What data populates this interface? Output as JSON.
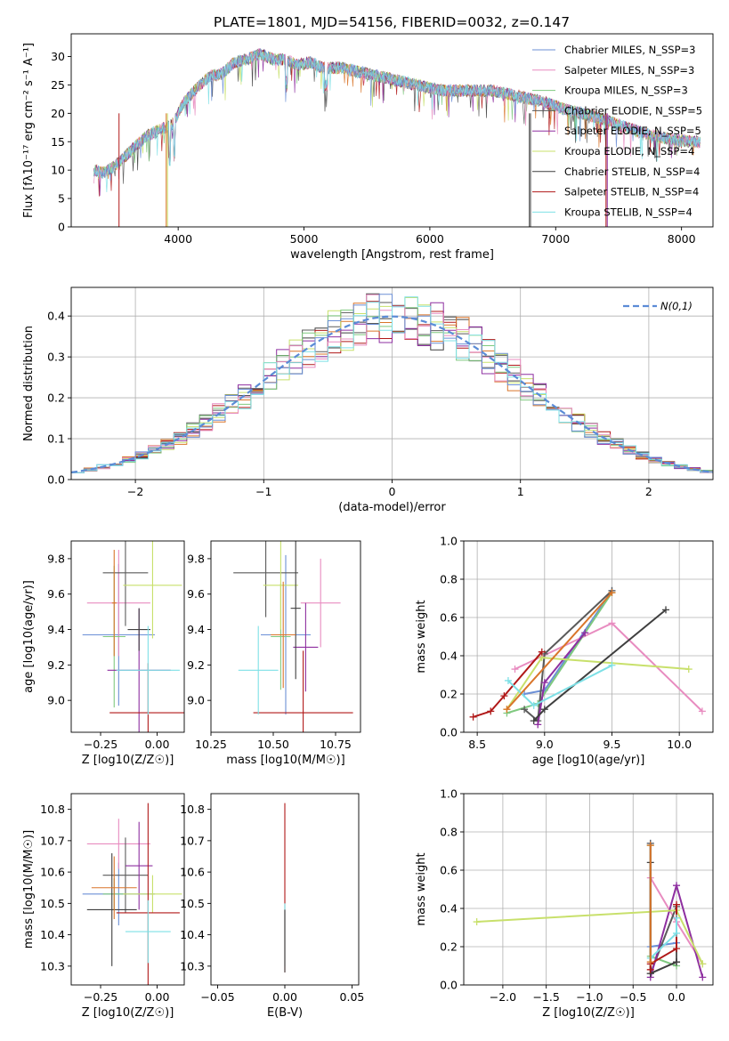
{
  "colors": [
    "#6b8fd6",
    "#e88cc0",
    "#7fc97f",
    "#5a5a5a",
    "#8e2fa0",
    "#c8e06b",
    "#3f3f3f",
    "#b01818",
    "#7ee0e6",
    "#d9752a"
  ],
  "panel_titles": {
    "spectrum": "PLATE=1801, MJD=54156, FIBERID=0032, z=0.147"
  },
  "chart_data": [
    {
      "id": "spectrum",
      "type": "line",
      "title": "PLATE=1801, MJD=54156, FIBERID=0032, z=0.147",
      "xlabel": "wavelength [Angstrom, rest frame]",
      "ylabel": "Flux [fλ10⁻¹⁷ erg cm⁻² s⁻¹ A⁻¹]",
      "xlim": [
        3150,
        8250
      ],
      "ylim": [
        0,
        34
      ],
      "xticks": [
        4000,
        5000,
        6000,
        7000,
        8000
      ],
      "yticks": [
        0,
        5,
        10,
        15,
        20,
        25,
        30
      ],
      "legend_position": "top-right",
      "legend": [
        "Chabrier MILES, N_SSP=3",
        "Salpeter MILES, N_SSP=3",
        "Kroupa MILES, N_SSP=3",
        "Chabrier ELODIE, N_SSP=5",
        "Salpeter ELODIE, N_SSP=5",
        "Kroupa ELODIE, N_SSP=4",
        "Chabrier STELIB, N_SSP=4",
        "Salpeter STELIB, N_SSP=4",
        "Kroupa STELIB, N_SSP=4"
      ],
      "envelope": [
        [
          3330,
          10
        ],
        [
          3400,
          9.5
        ],
        [
          3480,
          10.5
        ],
        [
          3560,
          12
        ],
        [
          3650,
          14
        ],
        [
          3750,
          16
        ],
        [
          3850,
          17
        ],
        [
          3950,
          18
        ],
        [
          4050,
          22
        ],
        [
          4150,
          24.5
        ],
        [
          4250,
          26.5
        ],
        [
          4350,
          27
        ],
        [
          4450,
          29
        ],
        [
          4550,
          29.5
        ],
        [
          4650,
          30.5
        ],
        [
          4750,
          29.5
        ],
        [
          4850,
          29.5
        ],
        [
          4950,
          28.5
        ],
        [
          5050,
          29
        ],
        [
          5150,
          28
        ],
        [
          5300,
          28
        ],
        [
          5500,
          27
        ],
        [
          5700,
          26
        ],
        [
          5900,
          25
        ],
        [
          6100,
          24
        ],
        [
          6300,
          24
        ],
        [
          6500,
          24
        ],
        [
          6700,
          23
        ],
        [
          6900,
          22
        ],
        [
          7100,
          20.5
        ],
        [
          7300,
          19.5
        ],
        [
          7500,
          18
        ],
        [
          7700,
          16.5
        ],
        [
          7900,
          15.5
        ],
        [
          8100,
          15
        ]
      ]
    },
    {
      "id": "residuals",
      "type": "line",
      "xlabel": "(data-model)/error",
      "ylabel": "Normed distribution",
      "xlim": [
        -2.5,
        2.5
      ],
      "ylim": [
        0,
        0.47
      ],
      "xticks": [
        -2,
        -1,
        0,
        1,
        2
      ],
      "yticks": [
        0.0,
        0.1,
        0.2,
        0.3,
        0.4
      ],
      "grid": true,
      "legend_position": "top-right",
      "legend": [
        "N(0,1)"
      ],
      "bin_width": 0.1
    },
    {
      "id": "age_vs_Z",
      "type": "scatter",
      "xlabel": "Z [log10(Z/Z☉)]",
      "ylabel": "age  [log10(age/yr)]",
      "xlim": [
        -0.38,
        0.12
      ],
      "ylim": [
        8.82,
        9.9
      ],
      "xticks": [
        -0.25,
        0.0
      ],
      "yticks": [
        9.0,
        9.2,
        9.4,
        9.6,
        9.8
      ],
      "points": [
        {
          "x": -0.17,
          "y": 9.37,
          "xerr": 0.16,
          "yerr": 0.4,
          "c": 0
        },
        {
          "x": -0.17,
          "y": 9.55,
          "xerr": 0.14,
          "yerr": 0.3,
          "c": 1
        },
        {
          "x": -0.19,
          "y": 9.36,
          "xerr": 0.05,
          "yerr": 0.4,
          "c": 2
        },
        {
          "x": -0.14,
          "y": 9.72,
          "xerr": 0.1,
          "yerr": 0.3,
          "c": 3
        },
        {
          "x": -0.08,
          "y": 9.17,
          "xerr": 0.14,
          "yerr": 0.35,
          "c": 4
        },
        {
          "x": -0.02,
          "y": 9.65,
          "xerr": 0.13,
          "yerr": 0.3,
          "c": 5
        },
        {
          "x": -0.08,
          "y": 9.4,
          "xerr": 0.05,
          "yerr": 0.12,
          "c": 6
        },
        {
          "x": -0.04,
          "y": 8.93,
          "xerr": 0.17,
          "yerr": 0.28,
          "c": 7
        },
        {
          "x": -0.04,
          "y": 9.17,
          "xerr": 0.14,
          "yerr": 0.25,
          "c": 8
        },
        {
          "x": -0.19,
          "y": 9.55,
          "xerr": 0.01,
          "yerr": 0.3,
          "c": 9
        }
      ]
    },
    {
      "id": "age_vs_mass",
      "type": "scatter",
      "xlabel": "mass [log10(M/M☉)]",
      "ylabel": "",
      "xlim": [
        10.25,
        10.85
      ],
      "ylim": [
        8.82,
        9.9
      ],
      "xticks": [
        10.25,
        10.5,
        10.75
      ],
      "yticks": [
        9.0,
        9.2,
        9.4,
        9.6,
        9.8
      ],
      "points": [
        {
          "x": 10.55,
          "y": 9.37,
          "xerr": 0.1,
          "yerr": 0.45,
          "c": 0
        },
        {
          "x": 10.69,
          "y": 9.55,
          "xerr": 0.08,
          "yerr": 0.25,
          "c": 1
        },
        {
          "x": 10.53,
          "y": 9.36,
          "xerr": 0.04,
          "yerr": 0.3,
          "c": 2
        },
        {
          "x": 10.47,
          "y": 9.72,
          "xerr": 0.13,
          "yerr": 0.25,
          "c": 3
        },
        {
          "x": 10.63,
          "y": 9.3,
          "xerr": 0.05,
          "yerr": 0.25,
          "c": 4
        },
        {
          "x": 10.53,
          "y": 9.65,
          "xerr": 0.07,
          "yerr": 0.25,
          "c": 5
        },
        {
          "x": 10.59,
          "y": 9.52,
          "xerr": 0.02,
          "yerr": 0.4,
          "c": 6
        },
        {
          "x": 10.62,
          "y": 8.93,
          "xerr": 0.2,
          "yerr": 0.35,
          "c": 7
        },
        {
          "x": 10.44,
          "y": 9.17,
          "xerr": 0.08,
          "yerr": 0.25,
          "c": 8
        },
        {
          "x": 10.54,
          "y": 9.37,
          "xerr": 0.05,
          "yerr": 0.3,
          "c": 9
        }
      ]
    },
    {
      "id": "mass_weight_vs_age",
      "type": "line",
      "xlabel": "age  [log10(age/yr)]",
      "ylabel": "mass weight",
      "xlim": [
        8.4,
        10.25
      ],
      "ylim": [
        0,
        1
      ],
      "xticks": [
        8.5,
        9.0,
        9.5,
        10.0
      ],
      "yticks": [
        0.0,
        0.2,
        0.4,
        0.6,
        0.8,
        1.0
      ],
      "grid": true,
      "series": [
        {
          "c": 0,
          "points": [
            [
              8.85,
              0.2
            ],
            [
              9.0,
              0.22
            ],
            [
              9.5,
              0.74
            ]
          ]
        },
        {
          "c": 1,
          "points": [
            [
              8.78,
              0.33
            ],
            [
              9.5,
              0.57
            ],
            [
              10.17,
              0.11
            ]
          ]
        },
        {
          "c": 2,
          "points": [
            [
              8.72,
              0.1
            ],
            [
              8.95,
              0.15
            ],
            [
              9.5,
              0.73
            ]
          ]
        },
        {
          "c": 3,
          "points": [
            [
              8.85,
              0.12
            ],
            [
              8.95,
              0.06
            ],
            [
              9.0,
              0.41
            ],
            [
              9.5,
              0.74
            ]
          ]
        },
        {
          "c": 4,
          "points": [
            [
              8.95,
              0.04
            ],
            [
              9.0,
              0.26
            ],
            [
              9.3,
              0.52
            ]
          ]
        },
        {
          "c": 5,
          "points": [
            [
              8.72,
              0.12
            ],
            [
              8.98,
              0.39
            ],
            [
              10.07,
              0.33
            ]
          ]
        },
        {
          "c": 6,
          "points": [
            [
              8.92,
              0.06
            ],
            [
              9.0,
              0.12
            ],
            [
              9.9,
              0.64
            ]
          ]
        },
        {
          "c": 7,
          "points": [
            [
              8.47,
              0.08
            ],
            [
              8.6,
              0.11
            ],
            [
              8.7,
              0.19
            ],
            [
              8.98,
              0.42
            ]
          ]
        },
        {
          "c": 8,
          "points": [
            [
              8.73,
              0.27
            ],
            [
              8.92,
              0.14
            ],
            [
              9.5,
              0.35
            ]
          ]
        },
        {
          "c": 9,
          "points": [
            [
              8.72,
              0.12
            ],
            [
              9.5,
              0.73
            ]
          ]
        }
      ]
    },
    {
      "id": "mass_vs_Z",
      "type": "scatter",
      "xlabel": "Z [log10(Z/Z☉)]",
      "ylabel": "mass [log10(M/M☉)]",
      "xlim": [
        -0.38,
        0.12
      ],
      "ylim": [
        10.24,
        10.85
      ],
      "xticks": [
        -0.25,
        0.0
      ],
      "yticks": [
        10.3,
        10.4,
        10.5,
        10.6,
        10.7,
        10.8
      ],
      "points": [
        {
          "x": -0.17,
          "y": 10.53,
          "xerr": 0.16,
          "yerr": 0.1,
          "c": 0
        },
        {
          "x": -0.17,
          "y": 10.69,
          "xerr": 0.14,
          "yerr": 0.08,
          "c": 1
        },
        {
          "x": -0.19,
          "y": 10.53,
          "xerr": 0.05,
          "yerr": 0.05,
          "c": 2
        },
        {
          "x": -0.14,
          "y": 10.59,
          "xerr": 0.1,
          "yerr": 0.12,
          "c": 3
        },
        {
          "x": -0.08,
          "y": 10.62,
          "xerr": 0.06,
          "yerr": 0.14,
          "c": 4
        },
        {
          "x": -0.02,
          "y": 10.53,
          "xerr": 0.13,
          "yerr": 0.06,
          "c": 5
        },
        {
          "x": -0.2,
          "y": 10.48,
          "xerr": 0.11,
          "yerr": 0.18,
          "c": 6
        },
        {
          "x": -0.04,
          "y": 10.47,
          "xerr": 0.14,
          "yerr": 0.35,
          "c": 7
        },
        {
          "x": -0.04,
          "y": 10.41,
          "xerr": 0.1,
          "yerr": 0.1,
          "c": 8
        },
        {
          "x": -0.19,
          "y": 10.55,
          "xerr": 0.1,
          "yerr": 0.1,
          "c": 9
        }
      ]
    },
    {
      "id": "mass_vs_ebv",
      "type": "scatter",
      "xlabel": "E(B-V)",
      "ylabel": "",
      "xlim": [
        -0.055,
        0.055
      ],
      "ylim": [
        10.24,
        10.85
      ],
      "xticks": [
        -0.05,
        0.0,
        0.05
      ],
      "yticks": [
        10.3,
        10.4,
        10.5,
        10.6,
        10.7,
        10.8
      ],
      "points": [
        {
          "x": 0.0,
          "y": 10.55,
          "xerr": 0,
          "yerr": 0.27,
          "c": 7
        },
        {
          "x": 0.0,
          "y": 10.4,
          "xerr": 0,
          "yerr": 0.1,
          "c": 8
        },
        {
          "x": 0.0,
          "y": 10.38,
          "xerr": 0,
          "yerr": 0.1,
          "c": 6
        }
      ]
    },
    {
      "id": "mass_weight_vs_Z",
      "type": "line",
      "xlabel": "Z [log10(Z/Z☉)]",
      "ylabel": "mass weight",
      "xlim": [
        -2.45,
        0.42
      ],
      "ylim": [
        0,
        1
      ],
      "xticks": [
        -2.0,
        -1.5,
        -1.0,
        -0.5,
        0.0
      ],
      "yticks": [
        0.0,
        0.2,
        0.4,
        0.6,
        0.8,
        1.0
      ],
      "grid": true,
      "series": [
        {
          "c": 0,
          "points": [
            [
              -0.3,
              0.74
            ],
            [
              -0.3,
              0.2
            ],
            [
              0.0,
              0.22
            ]
          ]
        },
        {
          "c": 1,
          "points": [
            [
              -0.3,
              0.56
            ],
            [
              0.0,
              0.33
            ],
            [
              0.3,
              0.11
            ]
          ]
        },
        {
          "c": 2,
          "points": [
            [
              -0.3,
              0.73
            ],
            [
              -0.3,
              0.15
            ],
            [
              0.0,
              0.1
            ]
          ]
        },
        {
          "c": 3,
          "points": [
            [
              -0.3,
              0.74
            ],
            [
              -0.3,
              0.06
            ],
            [
              0.0,
              0.41
            ],
            [
              0.0,
              0.12
            ]
          ]
        },
        {
          "c": 4,
          "points": [
            [
              -0.3,
              0.04
            ],
            [
              0.0,
              0.52
            ],
            [
              0.3,
              0.04
            ]
          ]
        },
        {
          "c": 5,
          "points": [
            [
              -2.3,
              0.33
            ],
            [
              0.0,
              0.39
            ],
            [
              0.3,
              0.11
            ]
          ]
        },
        {
          "c": 6,
          "points": [
            [
              -0.3,
              0.64
            ],
            [
              -0.3,
              0.06
            ],
            [
              0.0,
              0.12
            ]
          ]
        },
        {
          "c": 7,
          "points": [
            [
              -0.3,
              0.08
            ],
            [
              -0.3,
              0.11
            ],
            [
              0.0,
              0.19
            ],
            [
              0.0,
              0.42
            ]
          ]
        },
        {
          "c": 8,
          "points": [
            [
              -0.3,
              0.14
            ],
            [
              0.0,
              0.27
            ],
            [
              0.0,
              0.35
            ]
          ]
        },
        {
          "c": 9,
          "points": [
            [
              -0.3,
              0.73
            ],
            [
              -0.3,
              0.12
            ]
          ]
        }
      ]
    }
  ]
}
